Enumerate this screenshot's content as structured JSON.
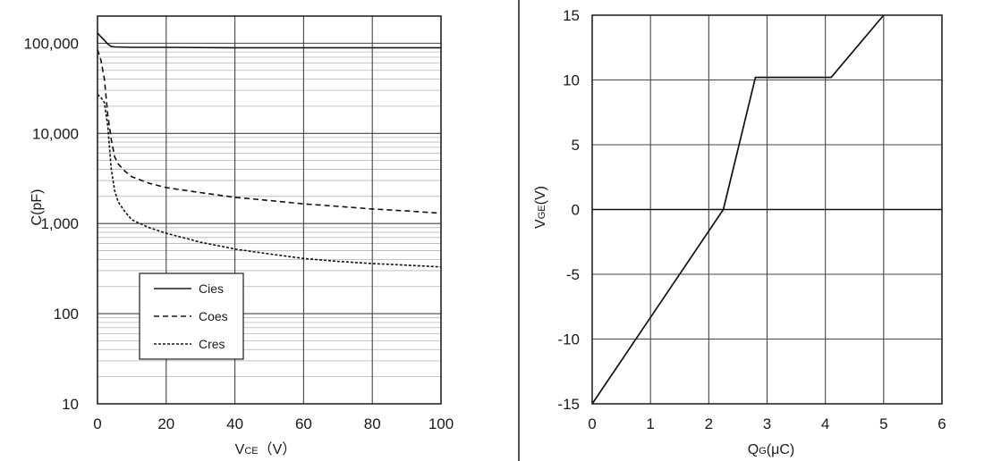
{
  "chart_data": [
    {
      "type": "line",
      "yscale": "log",
      "xlabel_main": "V",
      "xlabel_sub": "CE",
      "xlabel_unit": "（V）",
      "ylabel": "C(pF)",
      "xlim": [
        0,
        100
      ],
      "ylim": [
        10,
        200000
      ],
      "x_ticks": [
        0,
        20,
        40,
        60,
        80,
        100
      ],
      "x_tick_labels": [
        "0",
        "20",
        "40",
        "60",
        "80",
        "100"
      ],
      "y_ticks": [
        10,
        100,
        1000,
        10000,
        100000
      ],
      "y_tick_labels": [
        "10",
        "100",
        "1,000",
        "10,000",
        "100,000"
      ],
      "grid": true,
      "legend_position": "lower-left",
      "series": [
        {
          "name": "Cies",
          "style": "solid",
          "x": [
            0,
            1,
            2,
            3,
            4,
            5,
            10,
            20,
            40,
            60,
            80,
            100
          ],
          "y": [
            130000,
            118000,
            108000,
            98000,
            92000,
            91000,
            90000,
            90000,
            89000,
            89000,
            89000,
            89000
          ]
        },
        {
          "name": "Coes",
          "style": "dashed",
          "x": [
            0,
            1,
            2,
            3,
            4,
            5,
            6,
            8,
            10,
            15,
            20,
            30,
            40,
            50,
            60,
            70,
            80,
            90,
            100
          ],
          "y": [
            85000,
            65000,
            40000,
            16000,
            8500,
            5500,
            4600,
            3800,
            3300,
            2800,
            2500,
            2200,
            1950,
            1800,
            1650,
            1550,
            1450,
            1380,
            1300
          ]
        },
        {
          "name": "Cres",
          "style": "dotted",
          "x": [
            0,
            1,
            2,
            3,
            3.5,
            4,
            5,
            6,
            8,
            10,
            15,
            20,
            30,
            40,
            50,
            60,
            70,
            80,
            90,
            100
          ],
          "y": [
            27000,
            25000,
            22000,
            12000,
            7000,
            4000,
            2300,
            1750,
            1350,
            1100,
            900,
            780,
            620,
            520,
            460,
            410,
            380,
            360,
            345,
            330
          ]
        }
      ]
    },
    {
      "type": "line",
      "xlabel_main": "Q",
      "xlabel_sub": "G",
      "xlabel_unit": "(μC)",
      "ylabel_main": "V",
      "ylabel_sub": "GE",
      "ylabel_unit": "(V)",
      "xlim": [
        0,
        6
      ],
      "ylim": [
        -15,
        15
      ],
      "x_ticks": [
        0,
        1,
        2,
        3,
        4,
        5,
        6
      ],
      "x_tick_labels": [
        "0",
        "1",
        "2",
        "3",
        "4",
        "5",
        "6"
      ],
      "y_ticks": [
        -15,
        -10,
        -5,
        0,
        5,
        10,
        15
      ],
      "y_tick_labels": [
        "-15",
        "-10",
        "-5",
        "0",
        "5",
        "10",
        "15"
      ],
      "grid": true,
      "series": [
        {
          "style": "solid",
          "x": [
            0,
            2.25,
            2.8,
            4.1,
            5.0
          ],
          "y": [
            -15,
            0,
            10.2,
            10.2,
            15
          ]
        }
      ]
    }
  ]
}
